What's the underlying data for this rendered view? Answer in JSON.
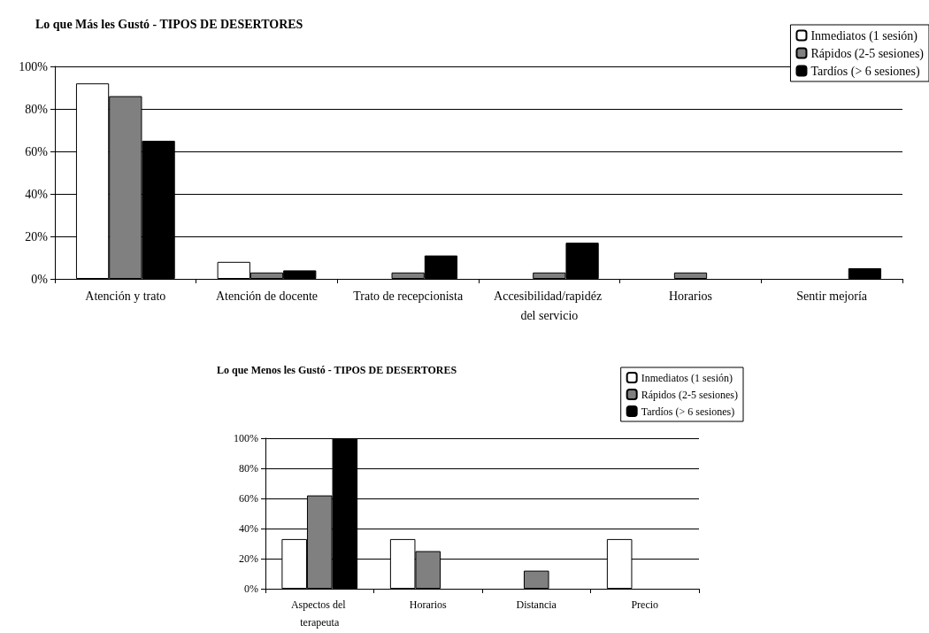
{
  "chart_data": [
    {
      "type": "bar",
      "title": "Lo que Más les Gustó - TIPOS DE DESERTORES",
      "categories": [
        "Atención y trato",
        "Atención de docente",
        "Trato de recepcionista",
        "Accesibilidad/rapidéz del servicio",
        "Horarios",
        "Sentir mejoría"
      ],
      "series": [
        {
          "name": "Inmediatos (1 sesión)",
          "color": "#ffffff",
          "values": [
            92,
            8,
            0,
            0,
            0,
            0
          ]
        },
        {
          "name": "Rápidos (2-5 sesiones)",
          "color": "#808080",
          "values": [
            86,
            3,
            3,
            3,
            3,
            0
          ]
        },
        {
          "name": "Tardíos (> 6 sesiones)",
          "color": "#000000",
          "values": [
            65,
            4,
            11,
            17,
            0,
            5
          ]
        }
      ],
      "ylim": [
        0,
        100
      ],
      "yticks": [
        {
          "value": 0,
          "label": "0%"
        },
        {
          "value": 20,
          "label": "20%"
        },
        {
          "value": 40,
          "label": "40%"
        },
        {
          "value": 60,
          "label": "60%"
        },
        {
          "value": 80,
          "label": "80%"
        },
        {
          "value": 100,
          "label": "100%"
        }
      ],
      "grid": "y",
      "legend": "top right"
    },
    {
      "type": "bar",
      "title": "Lo que Menos les Gustó - TIPOS DE DESERTORES",
      "categories": [
        "Aspectos del terapeuta",
        "Horarios",
        "Distancia",
        "Precio"
      ],
      "series": [
        {
          "name": "Inmediatos (1 sesión)",
          "color": "#ffffff",
          "values": [
            33,
            33,
            0,
            33
          ]
        },
        {
          "name": "Rápidos (2-5 sesiones)",
          "color": "#808080",
          "values": [
            62,
            25,
            12,
            0
          ]
        },
        {
          "name": "Tardíos (> 6 sesiones)",
          "color": "#000000",
          "values": [
            100,
            0,
            0,
            0
          ]
        }
      ],
      "ylim": [
        0,
        100
      ],
      "yticks": [
        {
          "value": 0,
          "label": "0%"
        },
        {
          "value": 20,
          "label": "20%"
        },
        {
          "value": 40,
          "label": "40%"
        },
        {
          "value": 60,
          "label": "60%"
        },
        {
          "value": 80,
          "label": "80%"
        },
        {
          "value": 100,
          "label": "100%"
        }
      ],
      "grid": "y",
      "legend": "top right"
    }
  ]
}
